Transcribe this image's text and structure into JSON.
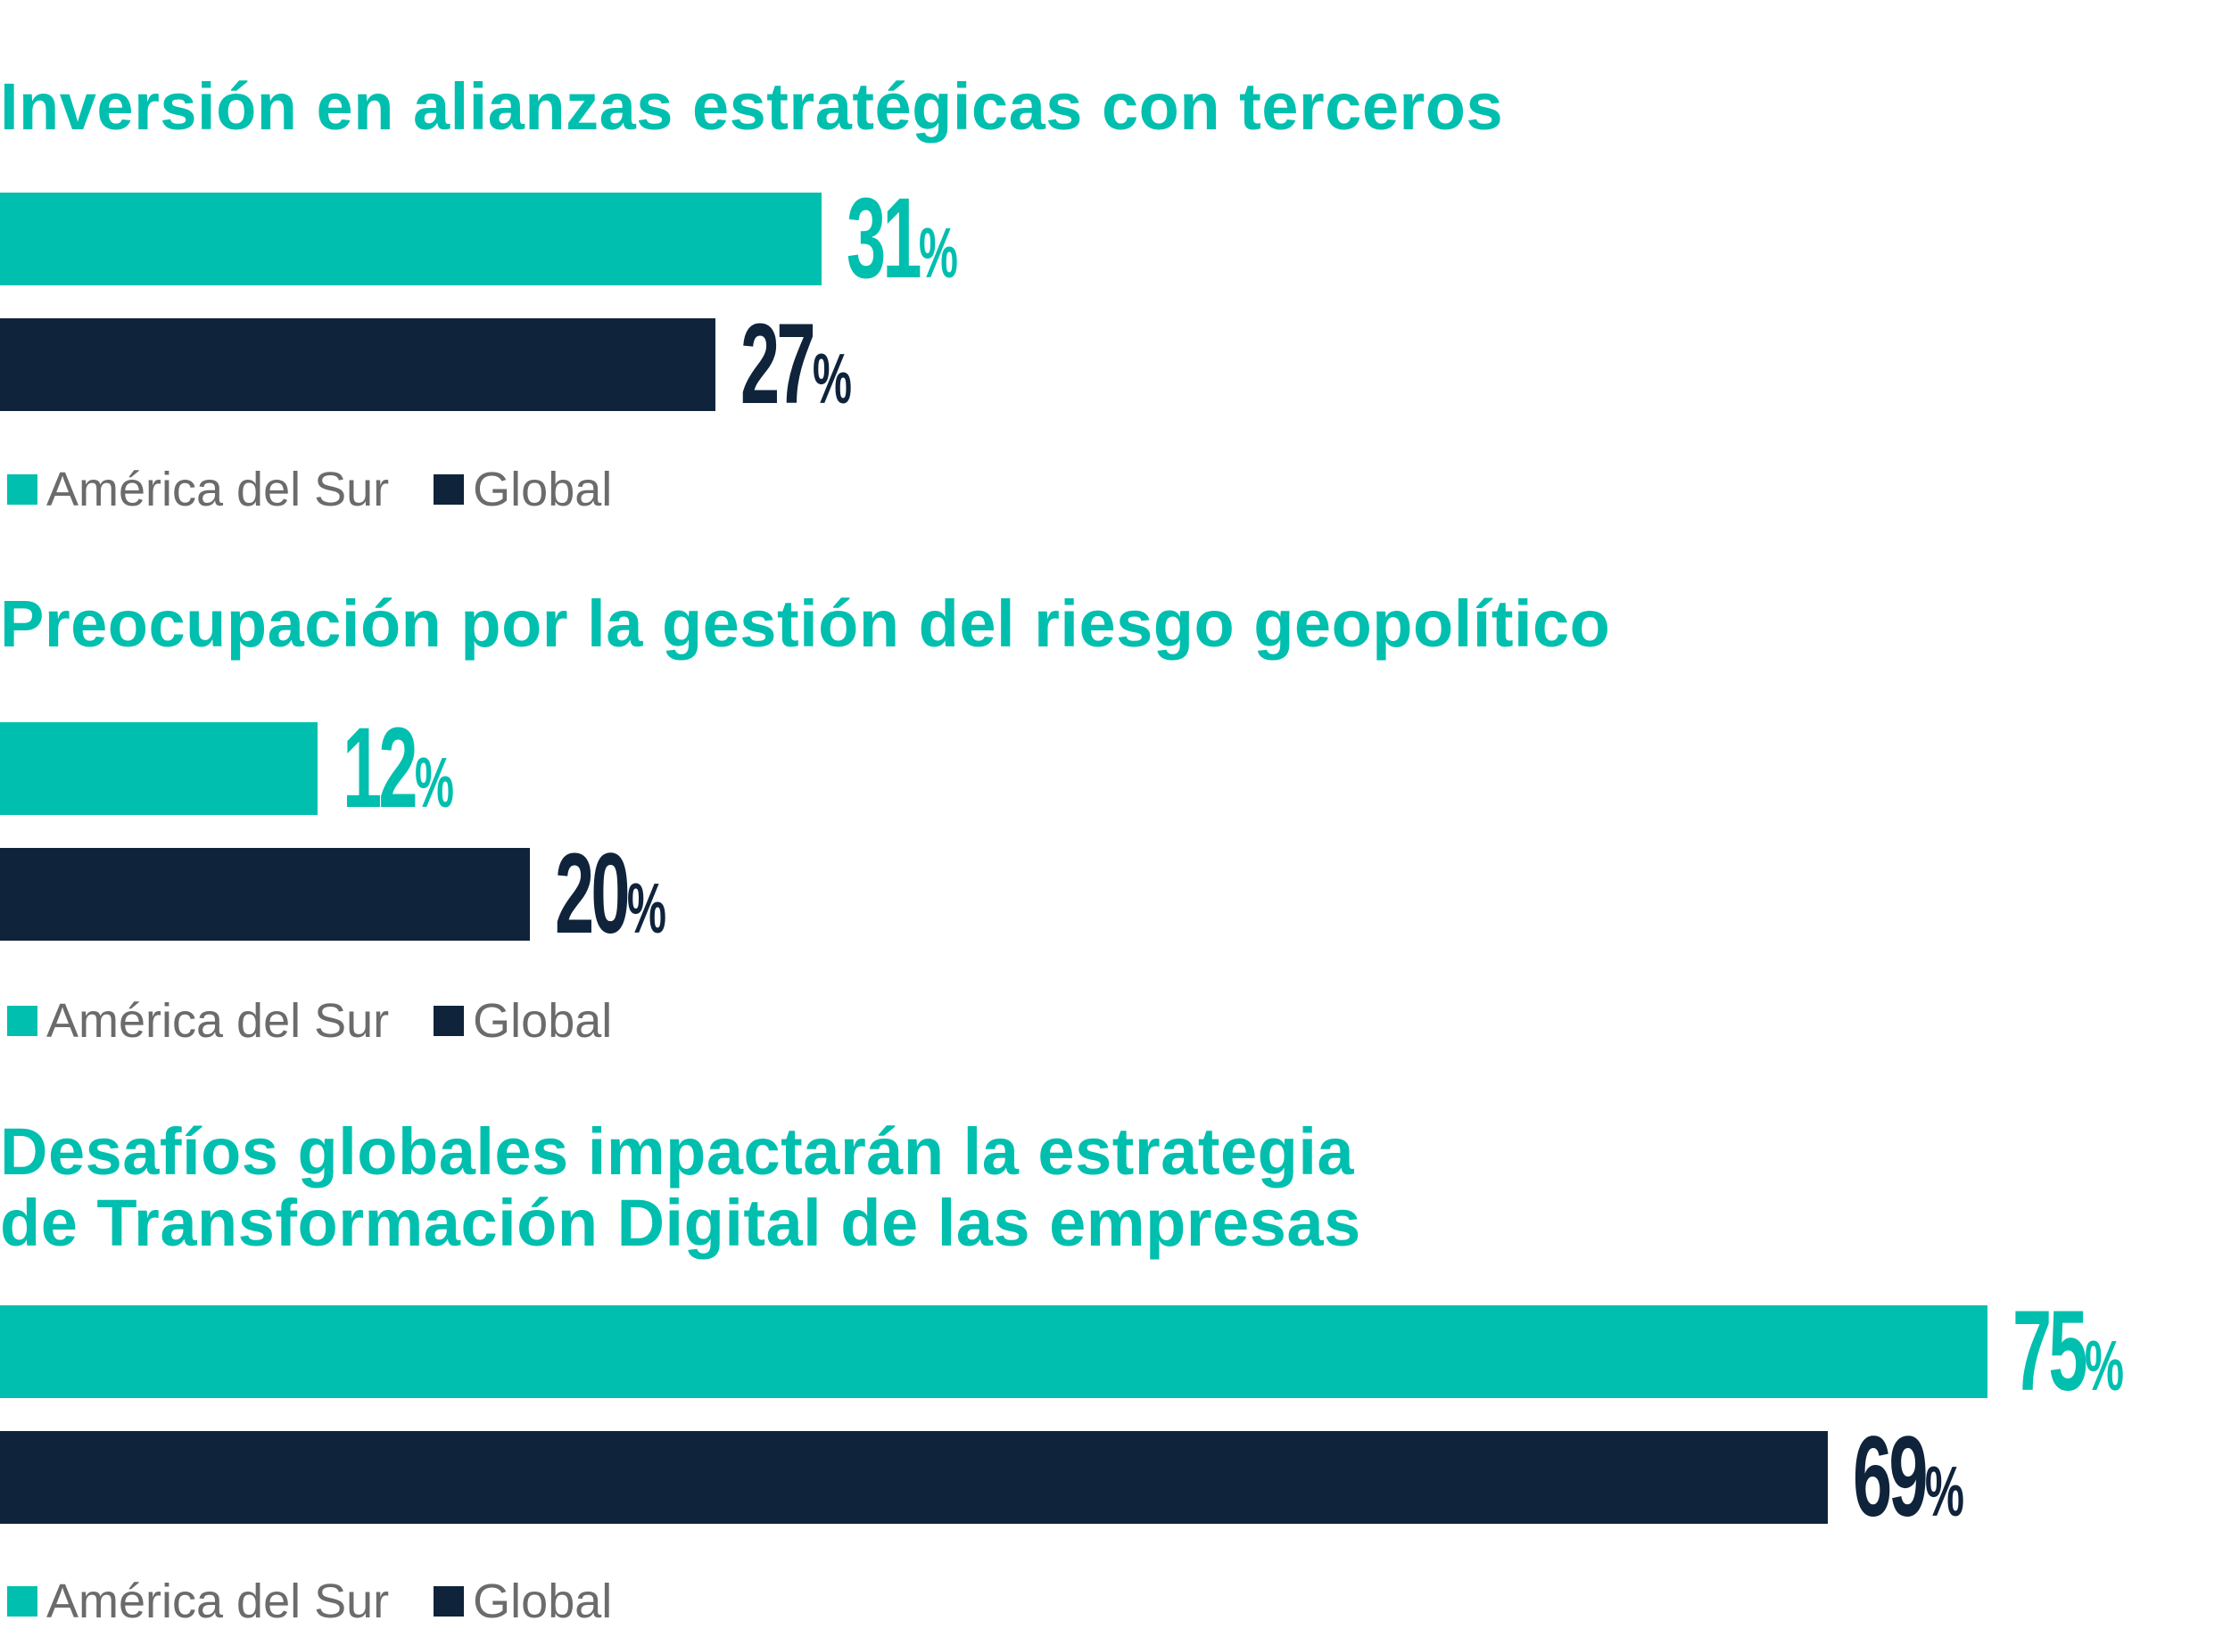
{
  "colors": {
    "america_del_sur": "#00BFAE",
    "global": "#0F233B"
  },
  "chart_data": [
    {
      "type": "bar",
      "orientation": "horizontal",
      "title": "Inversión en alianzas estratégicas con terceros",
      "series": [
        {
          "name": "América del Sur",
          "values": [
            31
          ],
          "label": "31"
        },
        {
          "name": "Global",
          "values": [
            27
          ],
          "label": "27"
        }
      ],
      "unit": "%",
      "xlim": [
        0,
        100
      ],
      "legend": [
        "América del Sur",
        "Global"
      ]
    },
    {
      "type": "bar",
      "orientation": "horizontal",
      "title": "Preocupación por la gestión del riesgo geopolítico",
      "series": [
        {
          "name": "América del Sur",
          "values": [
            12
          ],
          "label": "12"
        },
        {
          "name": "Global",
          "values": [
            20
          ],
          "label": "20"
        }
      ],
      "unit": "%",
      "xlim": [
        0,
        100
      ],
      "legend": [
        "América del Sur",
        "Global"
      ]
    },
    {
      "type": "bar",
      "orientation": "horizontal",
      "title": "Desafíos globales impactarán la estrategia",
      "title_line2": "de Transformación Digital de las empresas",
      "series": [
        {
          "name": "América del Sur",
          "values": [
            75
          ],
          "label": "75"
        },
        {
          "name": "Global",
          "values": [
            69
          ],
          "label": "69"
        }
      ],
      "unit": "%",
      "xlim": [
        0,
        100
      ],
      "legend": [
        "América del Sur",
        "Global"
      ]
    }
  ]
}
